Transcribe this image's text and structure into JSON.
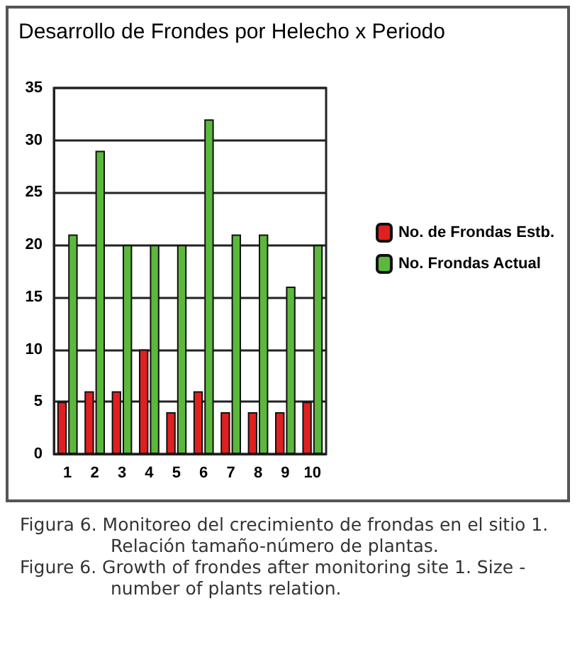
{
  "chart_data": {
    "type": "bar",
    "title": "Desarrollo de Frondes por Helecho x Periodo",
    "categories": [
      "1",
      "2",
      "3",
      "4",
      "5",
      "6",
      "7",
      "8",
      "9",
      "10"
    ],
    "series": [
      {
        "name": "No. de Frondas Estb.",
        "color": "#e02020",
        "values": [
          5,
          6,
          6,
          10,
          4,
          6,
          4,
          4,
          4,
          5
        ]
      },
      {
        "name": "No. Frondas Actual",
        "color": "#5cb83c",
        "values": [
          21,
          29,
          20,
          20,
          20,
          32,
          21,
          21,
          16,
          20
        ]
      }
    ],
    "ylim": [
      0,
      35
    ],
    "yticks": [
      0,
      5,
      10,
      15,
      20,
      25,
      30,
      35
    ],
    "grid": "y",
    "legend": "right",
    "annotations": [
      "Figura 6. Monitoreo del crecimiento de frondas en el sitio 1. Relación tamaño-número de plantas.",
      "Figure 6. Growth of frondes after monitoring site 1. Size -number of plants relation."
    ]
  }
}
